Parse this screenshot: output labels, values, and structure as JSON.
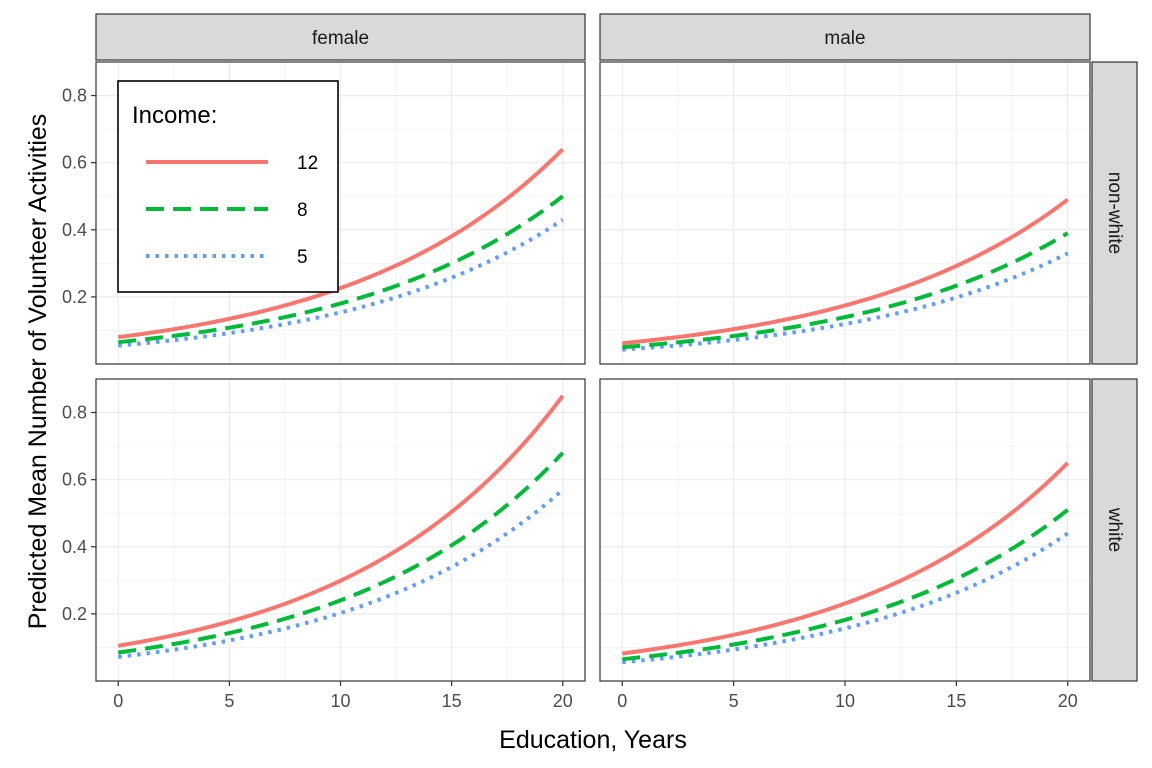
{
  "chart_data": {
    "type": "line",
    "facets": {
      "columns": [
        "female",
        "male"
      ],
      "rows": [
        "non-white",
        "white"
      ]
    },
    "xlabel": "Education, Years",
    "ylabel": "Predicted Mean Number of Volunteer Activities",
    "xlim": [
      -1,
      21
    ],
    "ylim": [
      0.0,
      0.9
    ],
    "x_ticks": [
      0,
      5,
      10,
      15,
      20
    ],
    "x_tick_labels": [
      "0",
      "5",
      "10",
      "15",
      "20"
    ],
    "y_ticks": [
      0.2,
      0.4,
      0.6,
      0.8
    ],
    "y_tick_labels": [
      "0.2",
      "0.4",
      "0.6",
      "0.8"
    ],
    "grid": true,
    "legend": {
      "title": "Income:",
      "placement": "top-left inside first panel",
      "entries": [
        {
          "label": "12",
          "color": "#F8766D",
          "linetype": "solid"
        },
        {
          "label": "8",
          "color": "#00BA38",
          "linetype": "dashed"
        },
        {
          "label": "5",
          "color": "#619CFF",
          "linetype": "dotted"
        }
      ]
    },
    "panels": [
      {
        "column": "female",
        "row": "non-white",
        "series": [
          {
            "name": "12",
            "x": [
              0,
              20
            ],
            "y": [
              0.08,
              0.64
            ]
          },
          {
            "name": "8",
            "x": [
              0,
              20
            ],
            "y": [
              0.065,
              0.5
            ]
          },
          {
            "name": "5",
            "x": [
              0,
              20
            ],
            "y": [
              0.055,
              0.43
            ]
          }
        ]
      },
      {
        "column": "male",
        "row": "non-white",
        "series": [
          {
            "name": "12",
            "x": [
              0,
              20
            ],
            "y": [
              0.062,
              0.49
            ]
          },
          {
            "name": "8",
            "x": [
              0,
              20
            ],
            "y": [
              0.05,
              0.39
            ]
          },
          {
            "name": "5",
            "x": [
              0,
              20
            ],
            "y": [
              0.043,
              0.33
            ]
          }
        ]
      },
      {
        "column": "female",
        "row": "white",
        "series": [
          {
            "name": "12",
            "x": [
              0,
              20
            ],
            "y": [
              0.105,
              0.85
            ]
          },
          {
            "name": "8",
            "x": [
              0,
              20
            ],
            "y": [
              0.085,
              0.68
            ]
          },
          {
            "name": "5",
            "x": [
              0,
              20
            ],
            "y": [
              0.072,
              0.57
            ]
          }
        ]
      },
      {
        "column": "male",
        "row": "white",
        "series": [
          {
            "name": "12",
            "x": [
              0,
              20
            ],
            "y": [
              0.082,
              0.65
            ]
          },
          {
            "name": "8",
            "x": [
              0,
              20
            ],
            "y": [
              0.065,
              0.51
            ]
          },
          {
            "name": "5",
            "x": [
              0,
              20
            ],
            "y": [
              0.056,
              0.44
            ]
          }
        ]
      }
    ]
  }
}
